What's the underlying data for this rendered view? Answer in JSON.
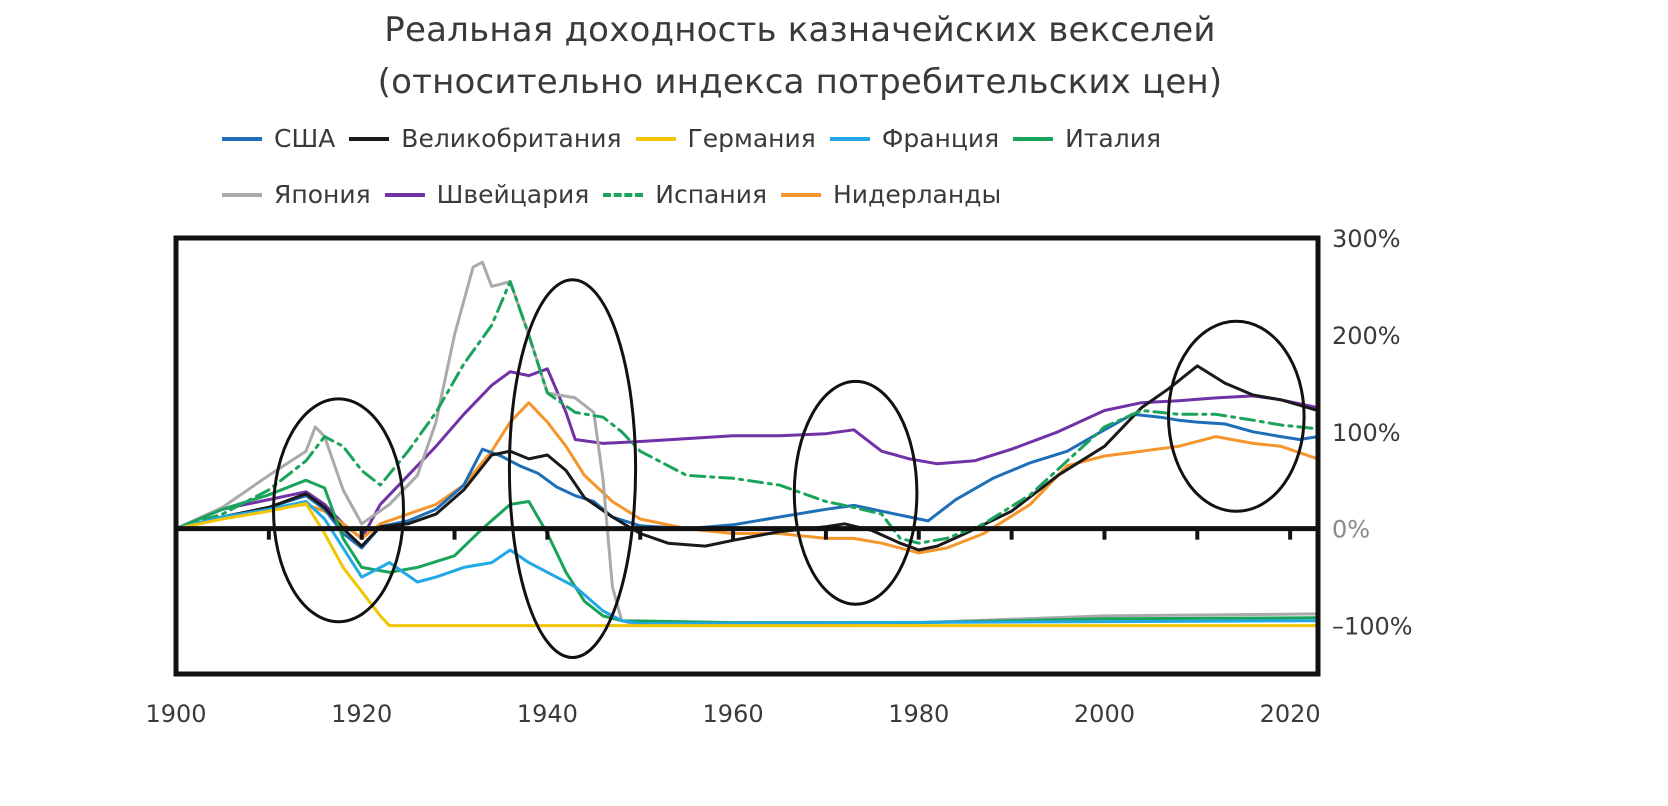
{
  "chart_data": {
    "type": "line",
    "title_line1": "Реальная доходность казначейских векселей",
    "title_line2": "(относительно индекса потребительских цен)",
    "xlim": [
      1900,
      2023
    ],
    "ylim": [
      -150,
      300
    ],
    "x_ticks": [
      1900,
      1920,
      1940,
      1960,
      1980,
      2000,
      2020
    ],
    "y_ticks": [
      {
        "value": 300,
        "label": "300%"
      },
      {
        "value": 200,
        "label": "200%"
      },
      {
        "value": 100,
        "label": "100%"
      },
      {
        "value": 0,
        "label": "0%"
      },
      {
        "value": -100,
        "label": "–100%"
      }
    ],
    "y_axis_side": "right",
    "legend_position": "top",
    "series": [
      {
        "name": "США",
        "color": "#1f6fb8",
        "style": "solid",
        "points": [
          [
            1900,
            0
          ],
          [
            1905,
            12
          ],
          [
            1910,
            22
          ],
          [
            1914,
            34
          ],
          [
            1916,
            20
          ],
          [
            1918,
            -5
          ],
          [
            1920,
            -20
          ],
          [
            1922,
            2
          ],
          [
            1925,
            8
          ],
          [
            1928,
            20
          ],
          [
            1931,
            45
          ],
          [
            1933,
            82
          ],
          [
            1935,
            75
          ],
          [
            1937,
            65
          ],
          [
            1939,
            57
          ],
          [
            1941,
            43
          ],
          [
            1943,
            34
          ],
          [
            1945,
            28
          ],
          [
            1947,
            12
          ],
          [
            1950,
            3
          ],
          [
            1955,
            0
          ],
          [
            1960,
            4
          ],
          [
            1965,
            12
          ],
          [
            1970,
            20
          ],
          [
            1973,
            24
          ],
          [
            1976,
            18
          ],
          [
            1979,
            12
          ],
          [
            1981,
            8
          ],
          [
            1984,
            30
          ],
          [
            1988,
            52
          ],
          [
            1992,
            68
          ],
          [
            1996,
            80
          ],
          [
            2000,
            102
          ],
          [
            2003,
            118
          ],
          [
            2006,
            115
          ],
          [
            2008,
            112
          ],
          [
            2010,
            110
          ],
          [
            2013,
            108
          ],
          [
            2016,
            100
          ],
          [
            2019,
            95
          ],
          [
            2021,
            92
          ],
          [
            2023,
            95
          ]
        ]
      },
      {
        "name": "Великобритания",
        "color": "#1a1a1a",
        "style": "solid",
        "points": [
          [
            1900,
            0
          ],
          [
            1905,
            12
          ],
          [
            1910,
            22
          ],
          [
            1914,
            36
          ],
          [
            1916,
            22
          ],
          [
            1918,
            0
          ],
          [
            1920,
            -18
          ],
          [
            1922,
            2
          ],
          [
            1925,
            5
          ],
          [
            1928,
            15
          ],
          [
            1931,
            40
          ],
          [
            1934,
            76
          ],
          [
            1936,
            80
          ],
          [
            1938,
            72
          ],
          [
            1940,
            76
          ],
          [
            1942,
            60
          ],
          [
            1944,
            32
          ],
          [
            1947,
            12
          ],
          [
            1950,
            -5
          ],
          [
            1953,
            -15
          ],
          [
            1957,
            -18
          ],
          [
            1960,
            -12
          ],
          [
            1965,
            -3
          ],
          [
            1970,
            2
          ],
          [
            1972,
            5
          ],
          [
            1975,
            -2
          ],
          [
            1978,
            -15
          ],
          [
            1980,
            -22
          ],
          [
            1982,
            -18
          ],
          [
            1985,
            -5
          ],
          [
            1990,
            18
          ],
          [
            1995,
            55
          ],
          [
            2000,
            85
          ],
          [
            2004,
            125
          ],
          [
            2007,
            145
          ],
          [
            2010,
            168
          ],
          [
            2013,
            150
          ],
          [
            2016,
            138
          ],
          [
            2019,
            133
          ],
          [
            2023,
            122
          ]
        ]
      },
      {
        "name": "Германия",
        "color": "#f2c500",
        "style": "solid",
        "points": [
          [
            1900,
            0
          ],
          [
            1905,
            10
          ],
          [
            1910,
            18
          ],
          [
            1914,
            26
          ],
          [
            1916,
            -5
          ],
          [
            1918,
            -40
          ],
          [
            1920,
            -65
          ],
          [
            1922,
            -90
          ],
          [
            1923,
            -100
          ],
          [
            2023,
            -100
          ]
        ]
      },
      {
        "name": "Франция",
        "color": "#21a8e5",
        "style": "solid",
        "points": [
          [
            1900,
            0
          ],
          [
            1905,
            12
          ],
          [
            1910,
            20
          ],
          [
            1914,
            28
          ],
          [
            1916,
            10
          ],
          [
            1918,
            -20
          ],
          [
            1920,
            -50
          ],
          [
            1921,
            -45
          ],
          [
            1923,
            -35
          ],
          [
            1926,
            -55
          ],
          [
            1928,
            -50
          ],
          [
            1931,
            -40
          ],
          [
            1934,
            -35
          ],
          [
            1936,
            -22
          ],
          [
            1938,
            -35
          ],
          [
            1940,
            -45
          ],
          [
            1943,
            -60
          ],
          [
            1946,
            -85
          ],
          [
            1948,
            -95
          ],
          [
            1950,
            -98
          ],
          [
            2023,
            -95
          ]
        ]
      },
      {
        "name": "Италия",
        "color": "#1aa35a",
        "style": "solid",
        "points": [
          [
            1900,
            0
          ],
          [
            1905,
            20
          ],
          [
            1910,
            35
          ],
          [
            1914,
            50
          ],
          [
            1916,
            42
          ],
          [
            1918,
            -10
          ],
          [
            1920,
            -40
          ],
          [
            1923,
            -45
          ],
          [
            1926,
            -40
          ],
          [
            1930,
            -28
          ],
          [
            1933,
            0
          ],
          [
            1936,
            25
          ],
          [
            1938,
            28
          ],
          [
            1940,
            -5
          ],
          [
            1942,
            -45
          ],
          [
            1944,
            -75
          ],
          [
            1946,
            -90
          ],
          [
            1948,
            -95
          ],
          [
            1960,
            -97
          ],
          [
            1980,
            -97
          ],
          [
            2000,
            -93
          ],
          [
            2023,
            -92
          ]
        ]
      },
      {
        "name": "Япония",
        "color": "#aaaaaa",
        "style": "solid",
        "points": [
          [
            1900,
            0
          ],
          [
            1905,
            22
          ],
          [
            1910,
            55
          ],
          [
            1914,
            80
          ],
          [
            1915,
            105
          ],
          [
            1916,
            95
          ],
          [
            1918,
            40
          ],
          [
            1920,
            5
          ],
          [
            1923,
            25
          ],
          [
            1926,
            55
          ],
          [
            1928,
            110
          ],
          [
            1930,
            200
          ],
          [
            1932,
            270
          ],
          [
            1933,
            275
          ],
          [
            1934,
            250
          ],
          [
            1936,
            255
          ],
          [
            1938,
            200
          ],
          [
            1940,
            140
          ],
          [
            1943,
            135
          ],
          [
            1945,
            120
          ],
          [
            1946,
            50
          ],
          [
            1947,
            -60
          ],
          [
            1948,
            -95
          ],
          [
            1950,
            -100
          ],
          [
            1960,
            -97
          ],
          [
            1980,
            -97
          ],
          [
            2000,
            -90
          ],
          [
            2023,
            -88
          ]
        ]
      },
      {
        "name": "Швейцария",
        "color": "#7032a6",
        "style": "solid",
        "points": [
          [
            1900,
            0
          ],
          [
            1905,
            20
          ],
          [
            1910,
            30
          ],
          [
            1914,
            38
          ],
          [
            1916,
            25
          ],
          [
            1918,
            5
          ],
          [
            1920,
            -10
          ],
          [
            1922,
            25
          ],
          [
            1925,
            55
          ],
          [
            1928,
            85
          ],
          [
            1931,
            118
          ],
          [
            1934,
            148
          ],
          [
            1936,
            162
          ],
          [
            1938,
            158
          ],
          [
            1940,
            165
          ],
          [
            1942,
            120
          ],
          [
            1943,
            92
          ],
          [
            1946,
            88
          ],
          [
            1950,
            90
          ],
          [
            1955,
            93
          ],
          [
            1960,
            96
          ],
          [
            1965,
            96
          ],
          [
            1970,
            98
          ],
          [
            1973,
            102
          ],
          [
            1976,
            80
          ],
          [
            1979,
            72
          ],
          [
            1982,
            67
          ],
          [
            1986,
            70
          ],
          [
            1990,
            82
          ],
          [
            1995,
            100
          ],
          [
            2000,
            122
          ],
          [
            2004,
            130
          ],
          [
            2008,
            132
          ],
          [
            2012,
            135
          ],
          [
            2016,
            137
          ],
          [
            2019,
            133
          ],
          [
            2023,
            125
          ]
        ]
      },
      {
        "name": "Испания",
        "color": "#1aa35a",
        "style": "dashdot",
        "points": [
          [
            1900,
            0
          ],
          [
            1905,
            15
          ],
          [
            1910,
            40
          ],
          [
            1914,
            70
          ],
          [
            1916,
            95
          ],
          [
            1918,
            85
          ],
          [
            1920,
            60
          ],
          [
            1922,
            45
          ],
          [
            1925,
            80
          ],
          [
            1928,
            120
          ],
          [
            1931,
            170
          ],
          [
            1934,
            210
          ],
          [
            1936,
            255
          ],
          [
            1938,
            200
          ],
          [
            1940,
            140
          ],
          [
            1943,
            120
          ],
          [
            1946,
            115
          ],
          [
            1948,
            100
          ],
          [
            1950,
            80
          ],
          [
            1955,
            55
          ],
          [
            1960,
            52
          ],
          [
            1965,
            45
          ],
          [
            1970,
            28
          ],
          [
            1973,
            22
          ],
          [
            1976,
            15
          ],
          [
            1978,
            -10
          ],
          [
            1980,
            -15
          ],
          [
            1983,
            -10
          ],
          [
            1987,
            5
          ],
          [
            1992,
            35
          ],
          [
            1996,
            70
          ],
          [
            2000,
            105
          ],
          [
            2004,
            122
          ],
          [
            2008,
            118
          ],
          [
            2012,
            118
          ],
          [
            2016,
            112
          ],
          [
            2019,
            107
          ],
          [
            2023,
            103
          ]
        ]
      },
      {
        "name": "Нидерланды",
        "color": "#f5962c",
        "style": "solid",
        "points": [
          [
            1900,
            0
          ],
          [
            1905,
            12
          ],
          [
            1910,
            20
          ],
          [
            1914,
            25
          ],
          [
            1916,
            18
          ],
          [
            1918,
            5
          ],
          [
            1920,
            -10
          ],
          [
            1922,
            5
          ],
          [
            1925,
            15
          ],
          [
            1928,
            25
          ],
          [
            1931,
            45
          ],
          [
            1934,
            80
          ],
          [
            1936,
            110
          ],
          [
            1938,
            130
          ],
          [
            1940,
            110
          ],
          [
            1942,
            85
          ],
          [
            1944,
            55
          ],
          [
            1947,
            28
          ],
          [
            1950,
            10
          ],
          [
            1955,
            0
          ],
          [
            1960,
            -5
          ],
          [
            1965,
            -5
          ],
          [
            1970,
            -10
          ],
          [
            1973,
            -10
          ],
          [
            1976,
            -15
          ],
          [
            1980,
            -25
          ],
          [
            1983,
            -20
          ],
          [
            1987,
            -5
          ],
          [
            1992,
            25
          ],
          [
            1996,
            65
          ],
          [
            2000,
            75
          ],
          [
            2004,
            80
          ],
          [
            2008,
            85
          ],
          [
            2012,
            95
          ],
          [
            2016,
            88
          ],
          [
            2019,
            85
          ],
          [
            2023,
            72
          ]
        ]
      }
    ],
    "annotations": [
      {
        "type": "ellipse",
        "cx": 1917.5,
        "cy": 19,
        "rx": 7,
        "ry": 115
      },
      {
        "type": "ellipse",
        "cx": 1942.7,
        "cy": 62,
        "rx": 6.8,
        "ry": 195
      },
      {
        "type": "ellipse",
        "cx": 1973.2,
        "cy": 37,
        "rx": 6.6,
        "ry": 115
      },
      {
        "type": "ellipse",
        "cx": 2014.2,
        "cy": 116,
        "rx": 7.3,
        "ry": 98
      }
    ]
  }
}
